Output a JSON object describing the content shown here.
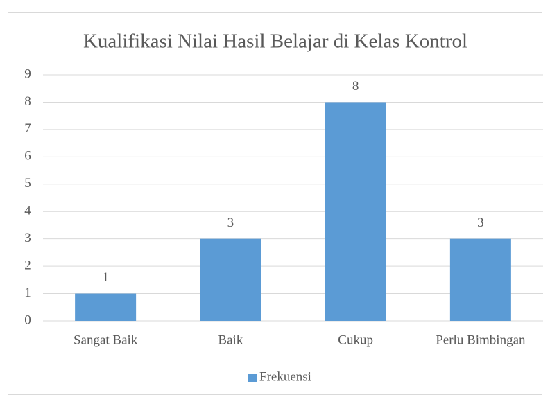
{
  "chart_data": {
    "type": "bar",
    "title": "Kualifikasi Nilai Hasil Belajar di Kelas Kontrol",
    "categories": [
      "Sangat Baik",
      "Baik",
      "Cukup",
      "Perlu Bimbingan"
    ],
    "series": [
      {
        "name": "Frekuensi",
        "color": "#5b9bd5",
        "values": [
          1,
          3,
          8,
          3
        ]
      }
    ],
    "ylim": [
      0,
      9
    ],
    "yticks": [
      0,
      1,
      2,
      3,
      4,
      5,
      6,
      7,
      8,
      9
    ],
    "grid": true,
    "legend": "bottom"
  }
}
